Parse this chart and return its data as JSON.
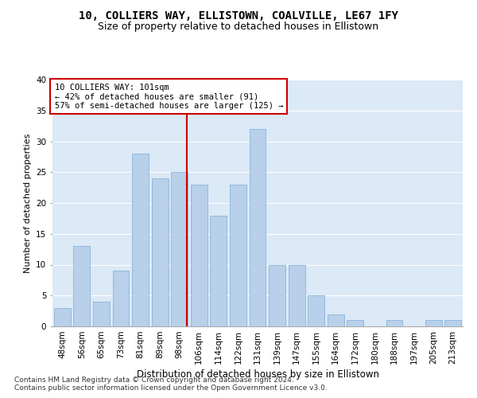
{
  "title1": "10, COLLIERS WAY, ELLISTOWN, COALVILLE, LE67 1FY",
  "title2": "Size of property relative to detached houses in Ellistown",
  "xlabel": "Distribution of detached houses by size in Ellistown",
  "ylabel": "Number of detached properties",
  "categories": [
    "48sqm",
    "56sqm",
    "65sqm",
    "73sqm",
    "81sqm",
    "89sqm",
    "98sqm",
    "106sqm",
    "114sqm",
    "122sqm",
    "131sqm",
    "139sqm",
    "147sqm",
    "155sqm",
    "164sqm",
    "172sqm",
    "180sqm",
    "188sqm",
    "197sqm",
    "205sqm",
    "213sqm"
  ],
  "values": [
    3,
    13,
    4,
    9,
    28,
    24,
    25,
    23,
    18,
    23,
    32,
    10,
    10,
    5,
    2,
    1,
    0,
    1,
    0,
    1,
    1
  ],
  "bar_color": "#b8d0ea",
  "bar_edge_color": "#7aaed4",
  "annotation_label": "10 COLLIERS WAY: 101sqm",
  "annotation_line1": "← 42% of detached houses are smaller (91)",
  "annotation_line2": "57% of semi-detached houses are larger (125) →",
  "vline_color": "#cc0000",
  "annotation_box_facecolor": "#ffffff",
  "annotation_box_edgecolor": "#cc0000",
  "ylim": [
    0,
    40
  ],
  "yticks": [
    0,
    5,
    10,
    15,
    20,
    25,
    30,
    35,
    40
  ],
  "bg_color": "#dce9f7",
  "footer1": "Contains HM Land Registry data © Crown copyright and database right 2024.",
  "footer2": "Contains public sector information licensed under the Open Government Licence v3.0.",
  "title1_fontsize": 10,
  "title2_fontsize": 9,
  "xlabel_fontsize": 8.5,
  "ylabel_fontsize": 8,
  "tick_fontsize": 7.5,
  "annotation_fontsize": 7.5,
  "footer_fontsize": 6.5
}
